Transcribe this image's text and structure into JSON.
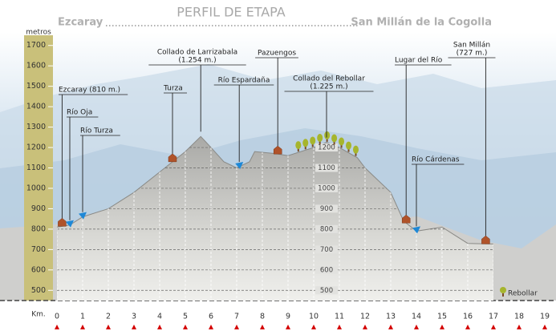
{
  "chart_data": {
    "type": "elevation-profile",
    "title": "PERFIL DE ETAPA",
    "start": "Ezcaray",
    "end": "San Millán de la Cogolla",
    "ylabel": "metros",
    "xlabel": "Km.",
    "ylim": [
      450,
      1750
    ],
    "yticks": [
      500,
      600,
      700,
      800,
      900,
      1000,
      1100,
      1200,
      1300,
      1400,
      1500,
      1600,
      1700
    ],
    "xlim": [
      0,
      19
    ],
    "xticks": [
      0,
      1,
      2,
      3,
      4,
      5,
      6,
      7,
      8,
      9,
      10,
      11,
      12,
      13,
      14,
      15,
      16,
      17,
      18,
      19
    ],
    "profile": {
      "km": [
        0,
        0.5,
        1,
        2,
        3,
        4,
        4.5,
        5,
        5.6,
        6,
        6.5,
        7,
        7.5,
        7.7,
        8.5,
        9,
        10,
        10.5,
        11,
        11.7,
        12,
        13,
        13.5,
        14,
        14.5,
        15,
        15.5,
        16,
        17
      ],
      "elev": [
        810,
        820,
        860,
        900,
        980,
        1080,
        1130,
        1180,
        1254,
        1200,
        1130,
        1100,
        1130,
        1180,
        1170,
        1160,
        1200,
        1225,
        1200,
        1150,
        1100,
        980,
        840,
        790,
        800,
        810,
        770,
        730,
        727
      ]
    },
    "waypoints": [
      {
        "label": "Ezcaray (810 m.)",
        "km": 0.2,
        "kind": "town"
      },
      {
        "label": "Río Oja",
        "km": 0.5,
        "kind": "river"
      },
      {
        "label": "Río Turza",
        "km": 1.0,
        "kind": "river"
      },
      {
        "label": "Turza",
        "km": 4.5,
        "kind": "town"
      },
      {
        "label": "Collado de Larrizabala",
        "sublabel": "(1.254 m.)",
        "km": 5.6,
        "kind": "pass"
      },
      {
        "label": "Río Espardaña",
        "km": 7.1,
        "kind": "river"
      },
      {
        "label": "Pazuengos",
        "km": 8.6,
        "kind": "town"
      },
      {
        "label": "Collado del Rebollar",
        "sublabel": "(1.225 m.)",
        "km": 10.5,
        "kind": "pass"
      },
      {
        "label": "Lugar del Río",
        "km": 13.6,
        "kind": "town"
      },
      {
        "label": "Río Cárdenas",
        "km": 14.0,
        "kind": "river"
      },
      {
        "label": "San Millán",
        "sublabel": "(727 m.)",
        "km": 16.7,
        "kind": "town"
      }
    ],
    "legend": "Rebollar"
  }
}
